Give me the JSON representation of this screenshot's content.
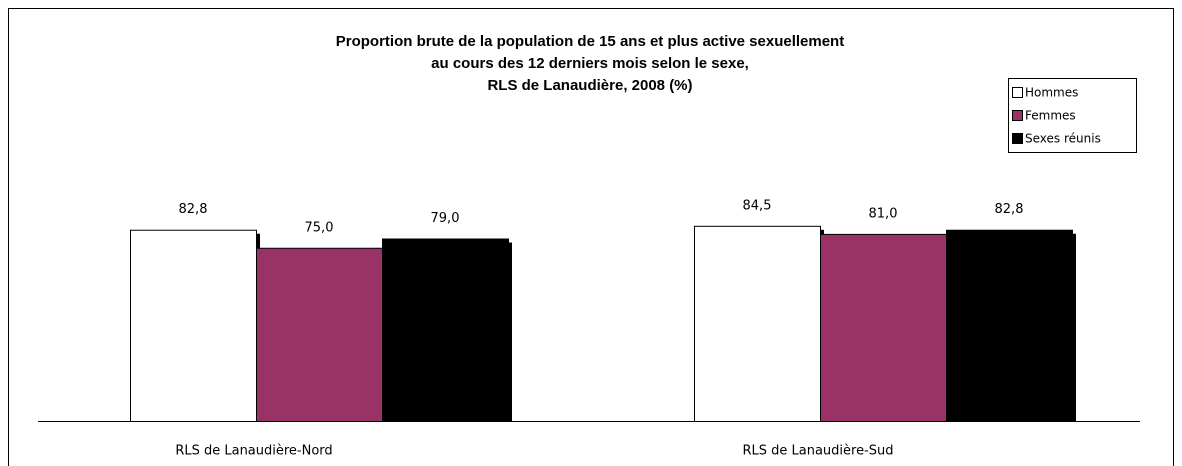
{
  "chart_data": {
    "type": "bar",
    "title": [
      "Proportion brute de la population de 15 ans et plus active sexuellement",
      "au cours des 12 derniers mois selon le sexe,",
      "RLS de Lanaudière, 2008 (%)"
    ],
    "categories": [
      "RLS de Lanaudière-Nord",
      "RLS de Lanaudière-Sud"
    ],
    "series": [
      {
        "name": "Hommes",
        "color": "#ffffff",
        "values": [
          82.8,
          84.5
        ],
        "value_labels": [
          "82,8",
          "84,5"
        ]
      },
      {
        "name": "Femmes",
        "color": "#993366",
        "values": [
          75.0,
          81.0
        ],
        "value_labels": [
          "75,0",
          "81,0"
        ]
      },
      {
        "name": "Sexes réunis",
        "color": "#000000",
        "values": [
          79.0,
          82.8
        ],
        "value_labels": [
          "79,0",
          "82,8"
        ]
      }
    ],
    "ylim": [
      0,
      100
    ],
    "legend": "top-right"
  }
}
